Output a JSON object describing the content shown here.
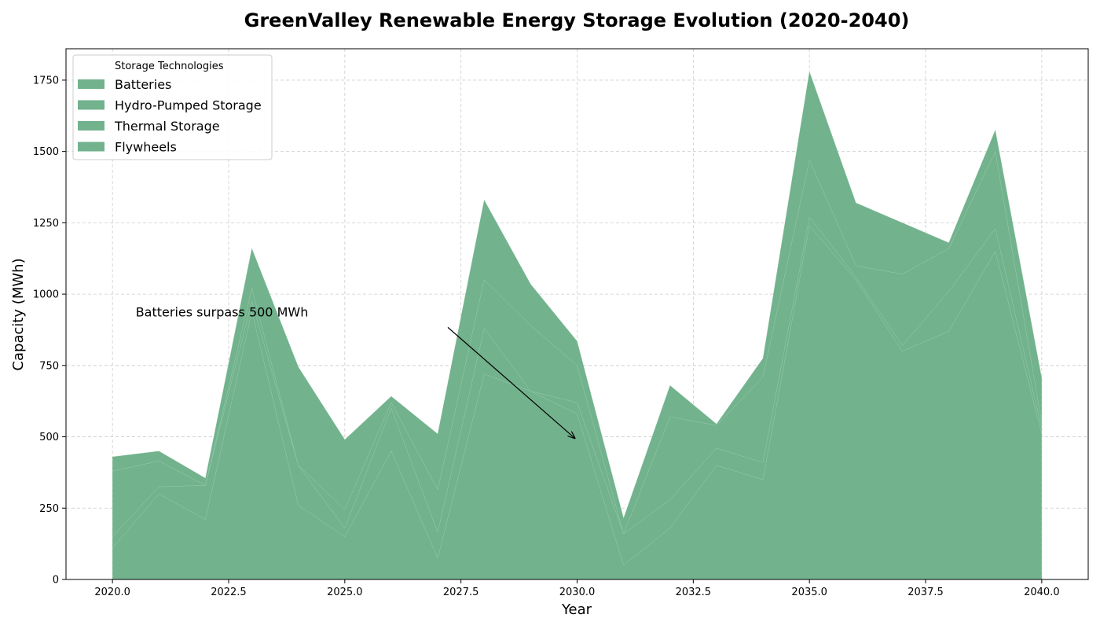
{
  "chart_data": {
    "type": "area",
    "stacked": true,
    "title": "GreenValley Renewable Energy Storage Evolution (2020-2040)",
    "xlabel": "Year",
    "ylabel": "Capacity (MWh)",
    "xlim": [
      2019,
      2041
    ],
    "ylim": [
      0,
      1860
    ],
    "x_ticks": [
      2020,
      2022.5,
      2025,
      2027.5,
      2030,
      2032.5,
      2035,
      2037.5,
      2040
    ],
    "x_tick_labels": [
      "2020.0",
      "2022.5",
      "2025.0",
      "2027.5",
      "2030.0",
      "2032.5",
      "2035.0",
      "2037.5",
      "2040.0"
    ],
    "y_ticks": [
      0,
      250,
      500,
      750,
      1000,
      1250,
      1500,
      1750
    ],
    "y_tick_labels": [
      "0",
      "250",
      "500",
      "750",
      "1000",
      "1250",
      "1500",
      "1750"
    ],
    "grid": true,
    "legend_title": "Storage Technologies",
    "legend_position": "upper-left",
    "fill_color": "#72b28d",
    "x": [
      2020,
      2021,
      2022,
      2023,
      2024,
      2025,
      2026,
      2027,
      2028,
      2029,
      2030,
      2031,
      2032,
      2033,
      2034,
      2035,
      2036,
      2037,
      2038,
      2039,
      2040
    ],
    "series": [
      {
        "name": "Batteries",
        "values": [
          110,
          300,
          210,
          940,
          260,
          150,
          450,
          75,
          720,
          660,
          580,
          50,
          180,
          400,
          350,
          1240,
          1050,
          800,
          870,
          1150,
          510
        ]
      },
      {
        "name": "Hydro-Pumped Storage",
        "values": [
          40,
          25,
          120,
          35,
          140,
          30,
          150,
          90,
          160,
          0,
          40,
          110,
          100,
          60,
          60,
          30,
          10,
          20,
          140,
          80,
          20
        ]
      },
      {
        "name": "Thermal Storage",
        "values": [
          230,
          90,
          0,
          45,
          0,
          65,
          20,
          150,
          170,
          230,
          130,
          0,
          290,
          80,
          300,
          200,
          40,
          250,
          150,
          270,
          20
        ]
      },
      {
        "name": "Flywheels",
        "values": [
          50,
          35,
          25,
          140,
          345,
          245,
          22,
          195,
          280,
          145,
          85,
          55,
          110,
          5,
          65,
          310,
          220,
          180,
          20,
          75,
          155
        ]
      }
    ],
    "annotations": [
      {
        "text": "Batteries surpass 500 MWh",
        "text_x": 2020.5,
        "text_y": 900,
        "arrow_x": 2030,
        "arrow_y": 520
      }
    ]
  }
}
